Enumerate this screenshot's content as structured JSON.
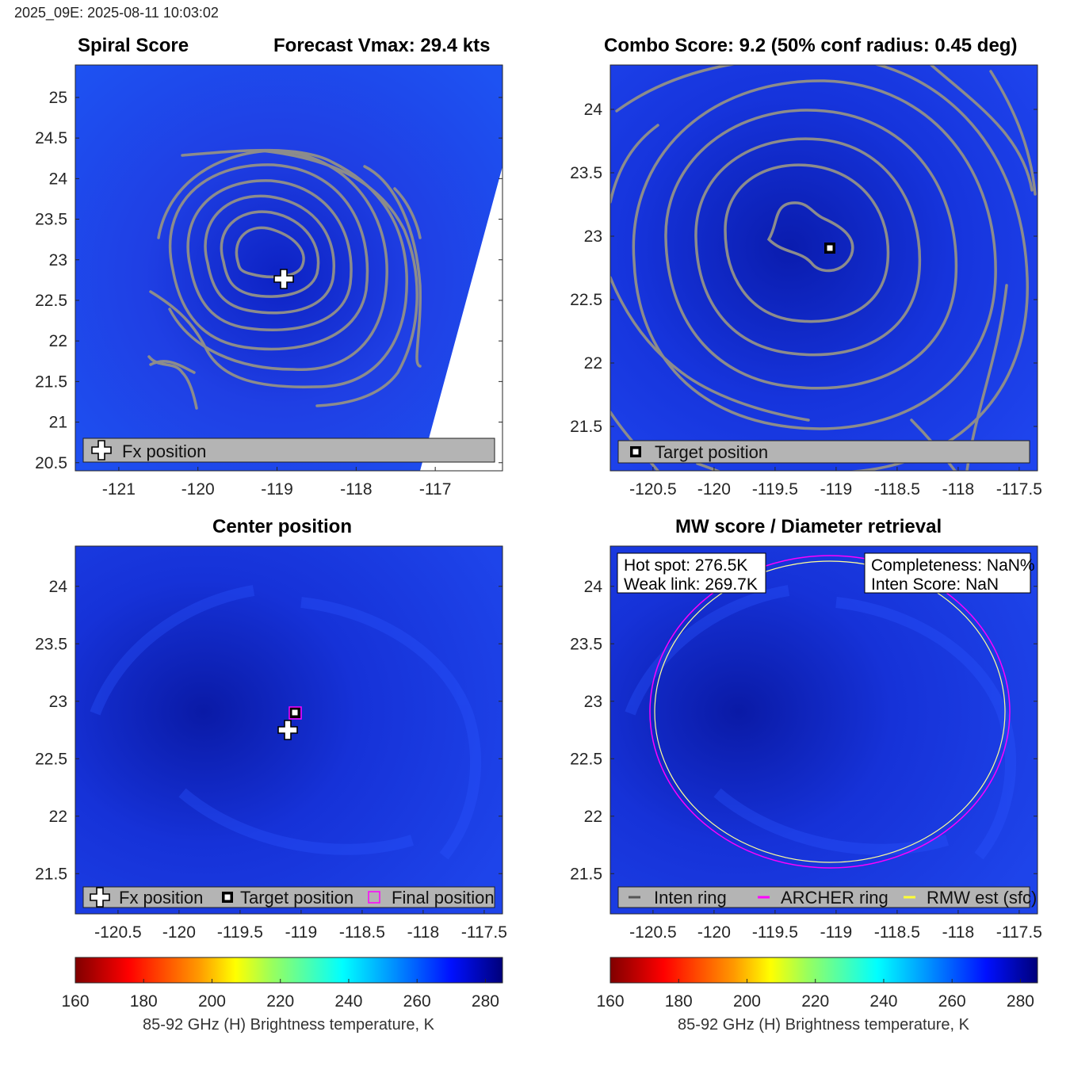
{
  "header": {
    "text": "2025_09E: 2025-08-11 10:03:02"
  },
  "panels": {
    "spiral": {
      "title_left": "Spiral Score",
      "title_right": "Forecast Vmax: 29.4 kts",
      "legend": [
        "Fx position"
      ]
    },
    "combo": {
      "title": "Combo Score: 9.2  (50% conf radius: 0.45 deg)",
      "legend": [
        "Target position"
      ]
    },
    "center": {
      "title": "Center position",
      "legend": [
        "Fx position",
        "Target position",
        "Final position"
      ]
    },
    "mw": {
      "title": "MW score / Diameter retrieval",
      "box_left": [
        "Hot spot: 276.5K",
        "Weak link: 269.7K"
      ],
      "box_right": [
        "Completeness: NaN%",
        "Inten Score: NaN"
      ],
      "legend": [
        "Inten ring",
        "ARCHER ring",
        "RMW est (sfc)"
      ]
    }
  },
  "colorbars": [
    {
      "label": "85-92 GHz (H) Brightness temperature, K",
      "ticks": [
        "160",
        "180",
        "200",
        "220",
        "240",
        "260",
        "280"
      ]
    },
    {
      "label": "85-92 GHz (H) Brightness temperature, K",
      "ticks": [
        "160",
        "180",
        "200",
        "220",
        "240",
        "260",
        "280"
      ]
    }
  ],
  "colors": {
    "contour": "#8c8c8c",
    "field": "#1a3ff0",
    "field_dark": "#0a1fb8",
    "legend_bg": "#b4b4b4",
    "archer": "#ff00ff",
    "rmw": "#ffff66",
    "inten": "#ffffff"
  },
  "chart_data": [
    {
      "type": "heatmap",
      "title": "Spiral Score",
      "xlim": [
        -121.55,
        -116.15
      ],
      "ylim": [
        20.4,
        25.4
      ],
      "x_ticks": [
        -121,
        -120,
        -119,
        -118,
        -117
      ],
      "y_ticks": [
        20.5,
        21,
        21.5,
        22,
        22.5,
        23,
        23.5,
        24,
        24.5,
        25
      ],
      "forecast_vmax_kts": 29.4,
      "fx_position": {
        "lon": -118.86,
        "lat": 22.74
      },
      "center_contour_level": "spiral score contours around storm center",
      "colorbar_range_K": [
        160,
        285
      ]
    },
    {
      "type": "heatmap",
      "title": "Combo Score",
      "combo_score": 9.2,
      "conf_radius_deg": 0.45,
      "xlim": [
        -120.85,
        -117.35
      ],
      "ylim": [
        21.15,
        24.35
      ],
      "x_ticks": [
        -120.5,
        -120,
        -119.5,
        -119,
        -118.5,
        -118,
        -117.5
      ],
      "y_ticks": [
        21.5,
        22,
        22.5,
        23,
        23.5,
        24
      ],
      "target_position": {
        "lon": -118.82,
        "lat": 22.89
      }
    },
    {
      "type": "heatmap",
      "title": "Center position",
      "xlim": [
        -120.85,
        -117.35
      ],
      "ylim": [
        21.15,
        24.35
      ],
      "x_ticks": [
        -120.5,
        -120,
        -119.5,
        -119,
        -118.5,
        -118,
        -117.5
      ],
      "y_ticks": [
        21.5,
        22,
        22.5,
        23,
        23.5,
        24
      ],
      "fx_position": {
        "lon": -118.86,
        "lat": 22.74
      },
      "target_position": {
        "lon": -118.82,
        "lat": 22.89
      },
      "final_position": {
        "lon": -118.82,
        "lat": 22.89
      }
    },
    {
      "type": "heatmap",
      "title": "MW score / Diameter retrieval",
      "xlim": [
        -120.85,
        -117.35
      ],
      "ylim": [
        21.15,
        24.35
      ],
      "x_ticks": [
        -120.5,
        -120,
        -119.5,
        -119,
        -118.5,
        -118,
        -117.5
      ],
      "y_ticks": [
        21.5,
        22,
        22.5,
        23,
        23.5,
        24
      ],
      "hot_spot_K": 276.5,
      "weak_link_K": 269.7,
      "archer_ring": {
        "lon": -118.82,
        "lat": 22.89,
        "radius_deg_x": 1.45,
        "radius_deg_y": 1.35
      },
      "rmw_ring": {
        "lon": -118.82,
        "lat": 22.89,
        "radius_deg_x": 1.42,
        "radius_deg_y": 1.31
      }
    }
  ]
}
